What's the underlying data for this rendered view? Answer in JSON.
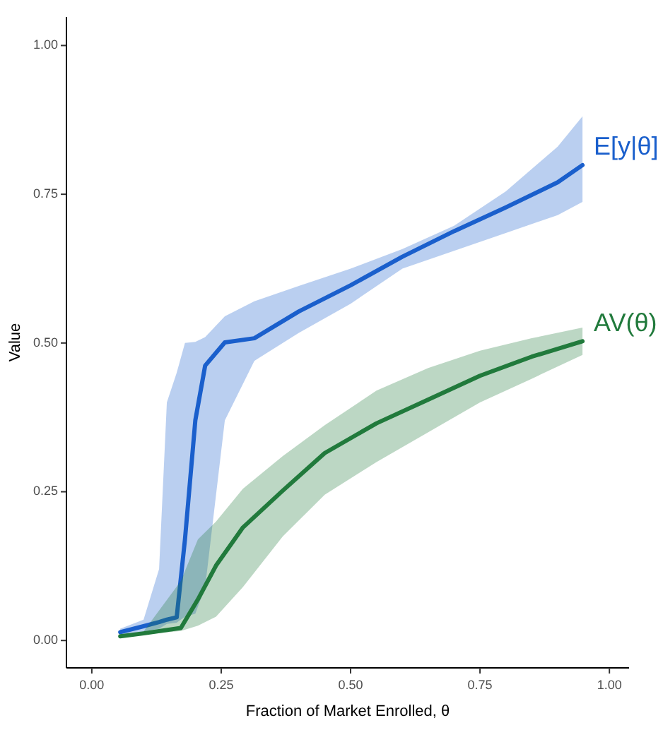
{
  "chart_data": {
    "type": "line",
    "xlabel": "Fraction of Market Enrolled, θ",
    "ylabel": "Value",
    "xlim": [
      -0.049,
      1.038
    ],
    "ylim": [
      -0.046,
      1.048
    ],
    "xticks": [
      {
        "value": 0,
        "label": "0.00"
      },
      {
        "value": 0.25,
        "label": "0.25"
      },
      {
        "value": 0.5,
        "label": "0.50"
      },
      {
        "value": 0.75,
        "label": "0.75"
      },
      {
        "value": 1,
        "label": "1.00"
      }
    ],
    "yticks": [
      {
        "value": 0,
        "label": "0.00"
      },
      {
        "value": 0.25,
        "label": "0.25"
      },
      {
        "value": 0.5,
        "label": "0.50"
      },
      {
        "value": 0.75,
        "label": "0.75"
      },
      {
        "value": 1,
        "label": "1.00"
      }
    ],
    "grid": false,
    "legend": false,
    "line_style": "solid",
    "marker": "none",
    "series": [
      {
        "name": "E[y|θ]",
        "color": "#1a5fcc",
        "x": [
          0.055,
          0.1,
          0.13,
          0.145,
          0.164,
          0.18,
          0.2,
          0.219,
          0.257,
          0.314,
          0.4,
          0.5,
          0.6,
          0.7,
          0.8,
          0.9,
          0.948
        ],
        "values": [
          0.014,
          0.024,
          0.031,
          0.035,
          0.039,
          0.17,
          0.37,
          0.462,
          0.501,
          0.508,
          0.553,
          0.597,
          0.645,
          0.688,
          0.728,
          0.77,
          0.799
        ],
        "lower": [
          0.01,
          0.015,
          0.02,
          0.028,
          0.03,
          0.04,
          0.045,
          0.09,
          0.37,
          0.47,
          0.517,
          0.566,
          0.625,
          0.655,
          0.685,
          0.715,
          0.737
        ],
        "upper": [
          0.02,
          0.035,
          0.12,
          0.4,
          0.45,
          0.5,
          0.502,
          0.51,
          0.545,
          0.57,
          0.596,
          0.625,
          0.658,
          0.697,
          0.755,
          0.83,
          0.881
        ]
      },
      {
        "name": "AV(θ)",
        "color": "#217a3c",
        "x": [
          0.055,
          0.1,
          0.172,
          0.205,
          0.24,
          0.292,
          0.369,
          0.45,
          0.55,
          0.65,
          0.75,
          0.85,
          0.948
        ],
        "values": [
          0.007,
          0.012,
          0.021,
          0.069,
          0.126,
          0.19,
          0.252,
          0.315,
          0.365,
          0.405,
          0.445,
          0.477,
          0.503
        ],
        "lower": [
          0.005,
          0.01,
          0.016,
          0.025,
          0.04,
          0.09,
          0.175,
          0.245,
          0.3,
          0.35,
          0.4,
          0.44,
          0.48
        ],
        "upper": [
          0.009,
          0.015,
          0.1,
          0.17,
          0.2,
          0.255,
          0.31,
          0.362,
          0.42,
          0.458,
          0.487,
          0.508,
          0.526
        ]
      }
    ]
  }
}
